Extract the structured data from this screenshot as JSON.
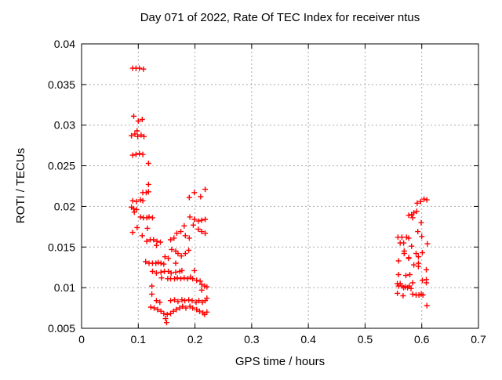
{
  "chart_data": {
    "type": "scatter",
    "title": "Day 071 of 2022, Rate Of TEC Index for receiver ntus",
    "xlabel": "GPS time / hours",
    "ylabel": "ROTI / TECUs",
    "xlim": [
      0,
      0.7
    ],
    "ylim": [
      0.005,
      0.04
    ],
    "grid": true,
    "legend_position": "none",
    "x_ticks": {
      "values": [
        0,
        0.1,
        0.2,
        0.3,
        0.4,
        0.5,
        0.6,
        0.7
      ],
      "labels": [
        "0",
        "0.1",
        "0.2",
        "0.3",
        "0.4",
        "0.5",
        "0.6",
        "0.7"
      ]
    },
    "y_ticks": {
      "values": [
        0.005,
        0.01,
        0.015,
        0.02,
        0.025,
        0.03,
        0.035,
        0.04
      ],
      "labels": [
        "0.005",
        "0.01",
        "0.015",
        "0.02",
        "0.025",
        "0.03",
        "0.035",
        "0.04"
      ]
    },
    "marker": {
      "shape": "plus",
      "color": "#ff0000",
      "size": 7
    },
    "colors": {
      "axis": "#000000",
      "grid": "#ababab",
      "background": "#ffffff",
      "points": "#ff0000"
    },
    "series": [
      {
        "name": "ROTI",
        "points": [
          [
            0.09,
            0.037
          ],
          [
            0.096,
            0.037
          ],
          [
            0.102,
            0.037
          ],
          [
            0.109,
            0.0369
          ],
          [
            0.092,
            0.0311
          ],
          [
            0.1,
            0.0305
          ],
          [
            0.107,
            0.0307
          ],
          [
            0.088,
            0.0287
          ],
          [
            0.094,
            0.0289
          ],
          [
            0.098,
            0.0293
          ],
          [
            0.099,
            0.0286
          ],
          [
            0.105,
            0.0288
          ],
          [
            0.11,
            0.0286
          ],
          [
            0.09,
            0.0263
          ],
          [
            0.096,
            0.0264
          ],
          [
            0.102,
            0.0265
          ],
          [
            0.108,
            0.0264
          ],
          [
            0.118,
            0.0253
          ],
          [
            0.118,
            0.0227
          ],
          [
            0.108,
            0.0217
          ],
          [
            0.114,
            0.0217
          ],
          [
            0.118,
            0.0218
          ],
          [
            0.09,
            0.0207
          ],
          [
            0.097,
            0.0206
          ],
          [
            0.104,
            0.0208
          ],
          [
            0.108,
            0.0207
          ],
          [
            0.088,
            0.0199
          ],
          [
            0.092,
            0.0197
          ],
          [
            0.097,
            0.0196
          ],
          [
            0.093,
            0.0193
          ],
          [
            0.104,
            0.0187
          ],
          [
            0.109,
            0.0186
          ],
          [
            0.115,
            0.0186
          ],
          [
            0.119,
            0.0187
          ],
          [
            0.125,
            0.0186
          ],
          [
            0.19,
            0.0211
          ],
          [
            0.199,
            0.0217
          ],
          [
            0.21,
            0.0212
          ],
          [
            0.218,
            0.0221
          ],
          [
            0.191,
            0.0187
          ],
          [
            0.199,
            0.0184
          ],
          [
            0.206,
            0.0182
          ],
          [
            0.212,
            0.0183
          ],
          [
            0.218,
            0.0184
          ],
          [
            0.098,
            0.0174
          ],
          [
            0.116,
            0.0173
          ],
          [
            0.09,
            0.0168
          ],
          [
            0.107,
            0.0164
          ],
          [
            0.181,
            0.0176
          ],
          [
            0.197,
            0.0177
          ],
          [
            0.206,
            0.0172
          ],
          [
            0.212,
            0.0169
          ],
          [
            0.218,
            0.0167
          ],
          [
            0.115,
            0.0157
          ],
          [
            0.121,
            0.0159
          ],
          [
            0.127,
            0.0159
          ],
          [
            0.133,
            0.0157
          ],
          [
            0.139,
            0.0156
          ],
          [
            0.132,
            0.0152
          ],
          [
            0.157,
            0.0159
          ],
          [
            0.163,
            0.0161
          ],
          [
            0.168,
            0.0167
          ],
          [
            0.175,
            0.0169
          ],
          [
            0.183,
            0.0164
          ],
          [
            0.19,
            0.0161
          ],
          [
            0.159,
            0.0147
          ],
          [
            0.166,
            0.0145
          ],
          [
            0.17,
            0.0142
          ],
          [
            0.176,
            0.0139
          ],
          [
            0.183,
            0.0142
          ],
          [
            0.189,
            0.0146
          ],
          [
            0.147,
            0.0138
          ],
          [
            0.153,
            0.0136
          ],
          [
            0.113,
            0.0132
          ],
          [
            0.119,
            0.013
          ],
          [
            0.125,
            0.013
          ],
          [
            0.131,
            0.013
          ],
          [
            0.135,
            0.0131
          ],
          [
            0.14,
            0.013
          ],
          [
            0.145,
            0.0129
          ],
          [
            0.166,
            0.013
          ],
          [
            0.125,
            0.012
          ],
          [
            0.132,
            0.0118
          ],
          [
            0.14,
            0.0119
          ],
          [
            0.146,
            0.012
          ],
          [
            0.153,
            0.012
          ],
          [
            0.158,
            0.0118
          ],
          [
            0.166,
            0.0119
          ],
          [
            0.173,
            0.012
          ],
          [
            0.177,
            0.0121
          ],
          [
            0.199,
            0.0121
          ],
          [
            0.141,
            0.0112
          ],
          [
            0.152,
            0.0111
          ],
          [
            0.157,
            0.0111
          ],
          [
            0.164,
            0.0111
          ],
          [
            0.169,
            0.0112
          ],
          [
            0.175,
            0.0111
          ],
          [
            0.181,
            0.0112
          ],
          [
            0.187,
            0.0111
          ],
          [
            0.192,
            0.0113
          ],
          [
            0.196,
            0.0111
          ],
          [
            0.203,
            0.0109
          ],
          [
            0.209,
            0.0108
          ],
          [
            0.124,
            0.0102
          ],
          [
            0.212,
            0.0104
          ],
          [
            0.217,
            0.0102
          ],
          [
            0.221,
            0.0101
          ],
          [
            0.124,
            0.0092
          ],
          [
            0.212,
            0.0097
          ],
          [
            0.221,
            0.0087
          ],
          [
            0.132,
            0.0084
          ],
          [
            0.138,
            0.0082
          ],
          [
            0.157,
            0.0084
          ],
          [
            0.164,
            0.0085
          ],
          [
            0.17,
            0.0083
          ],
          [
            0.177,
            0.0085
          ],
          [
            0.182,
            0.0084
          ],
          [
            0.189,
            0.0085
          ],
          [
            0.195,
            0.0084
          ],
          [
            0.202,
            0.0082
          ],
          [
            0.207,
            0.0084
          ],
          [
            0.213,
            0.0082
          ],
          [
            0.218,
            0.0084
          ],
          [
            0.122,
            0.0076
          ],
          [
            0.128,
            0.0075
          ],
          [
            0.134,
            0.0073
          ],
          [
            0.14,
            0.0071
          ],
          [
            0.145,
            0.0068
          ],
          [
            0.151,
            0.0067
          ],
          [
            0.157,
            0.0068
          ],
          [
            0.162,
            0.0071
          ],
          [
            0.167,
            0.0073
          ],
          [
            0.173,
            0.0075
          ],
          [
            0.178,
            0.0077
          ],
          [
            0.184,
            0.0075
          ],
          [
            0.191,
            0.0077
          ],
          [
            0.196,
            0.0075
          ],
          [
            0.203,
            0.0073
          ],
          [
            0.208,
            0.0071
          ],
          [
            0.214,
            0.0069
          ],
          [
            0.217,
            0.0067
          ],
          [
            0.221,
            0.007
          ],
          [
            0.148,
            0.0062
          ],
          [
            0.15,
            0.0057
          ],
          [
            0.592,
            0.0204
          ],
          [
            0.598,
            0.0206
          ],
          [
            0.604,
            0.0209
          ],
          [
            0.609,
            0.0208
          ],
          [
            0.577,
            0.0189
          ],
          [
            0.582,
            0.019
          ],
          [
            0.586,
            0.0192
          ],
          [
            0.591,
            0.0194
          ],
          [
            0.584,
            0.0186
          ],
          [
            0.599,
            0.018
          ],
          [
            0.593,
            0.0169
          ],
          [
            0.6,
            0.0163
          ],
          [
            0.558,
            0.0162
          ],
          [
            0.565,
            0.0162
          ],
          [
            0.573,
            0.0162
          ],
          [
            0.577,
            0.0161
          ],
          [
            0.562,
            0.0155
          ],
          [
            0.568,
            0.0155
          ],
          [
            0.61,
            0.0154
          ],
          [
            0.582,
            0.0151
          ],
          [
            0.569,
            0.0145
          ],
          [
            0.569,
            0.0142
          ],
          [
            0.59,
            0.0142
          ],
          [
            0.601,
            0.0143
          ],
          [
            0.559,
            0.0133
          ],
          [
            0.577,
            0.0137
          ],
          [
            0.577,
            0.0136
          ],
          [
            0.594,
            0.0138
          ],
          [
            0.586,
            0.0128
          ],
          [
            0.594,
            0.013
          ],
          [
            0.594,
            0.0126
          ],
          [
            0.608,
            0.0122
          ],
          [
            0.559,
            0.0116
          ],
          [
            0.572,
            0.0115
          ],
          [
            0.579,
            0.0116
          ],
          [
            0.584,
            0.0106
          ],
          [
            0.601,
            0.0109
          ],
          [
            0.608,
            0.011
          ],
          [
            0.608,
            0.0106
          ],
          [
            0.557,
            0.0105
          ],
          [
            0.562,
            0.0105
          ],
          [
            0.559,
            0.0102
          ],
          [
            0.565,
            0.0102
          ],
          [
            0.568,
            0.01
          ],
          [
            0.571,
            0.0101
          ],
          [
            0.575,
            0.01
          ],
          [
            0.578,
            0.0102
          ],
          [
            0.581,
            0.0099
          ],
          [
            0.557,
            0.0093
          ],
          [
            0.567,
            0.009
          ],
          [
            0.584,
            0.0092
          ],
          [
            0.59,
            0.0091
          ],
          [
            0.595,
            0.0091
          ],
          [
            0.599,
            0.0092
          ],
          [
            0.602,
            0.0091
          ],
          [
            0.609,
            0.0078
          ]
        ]
      }
    ]
  }
}
